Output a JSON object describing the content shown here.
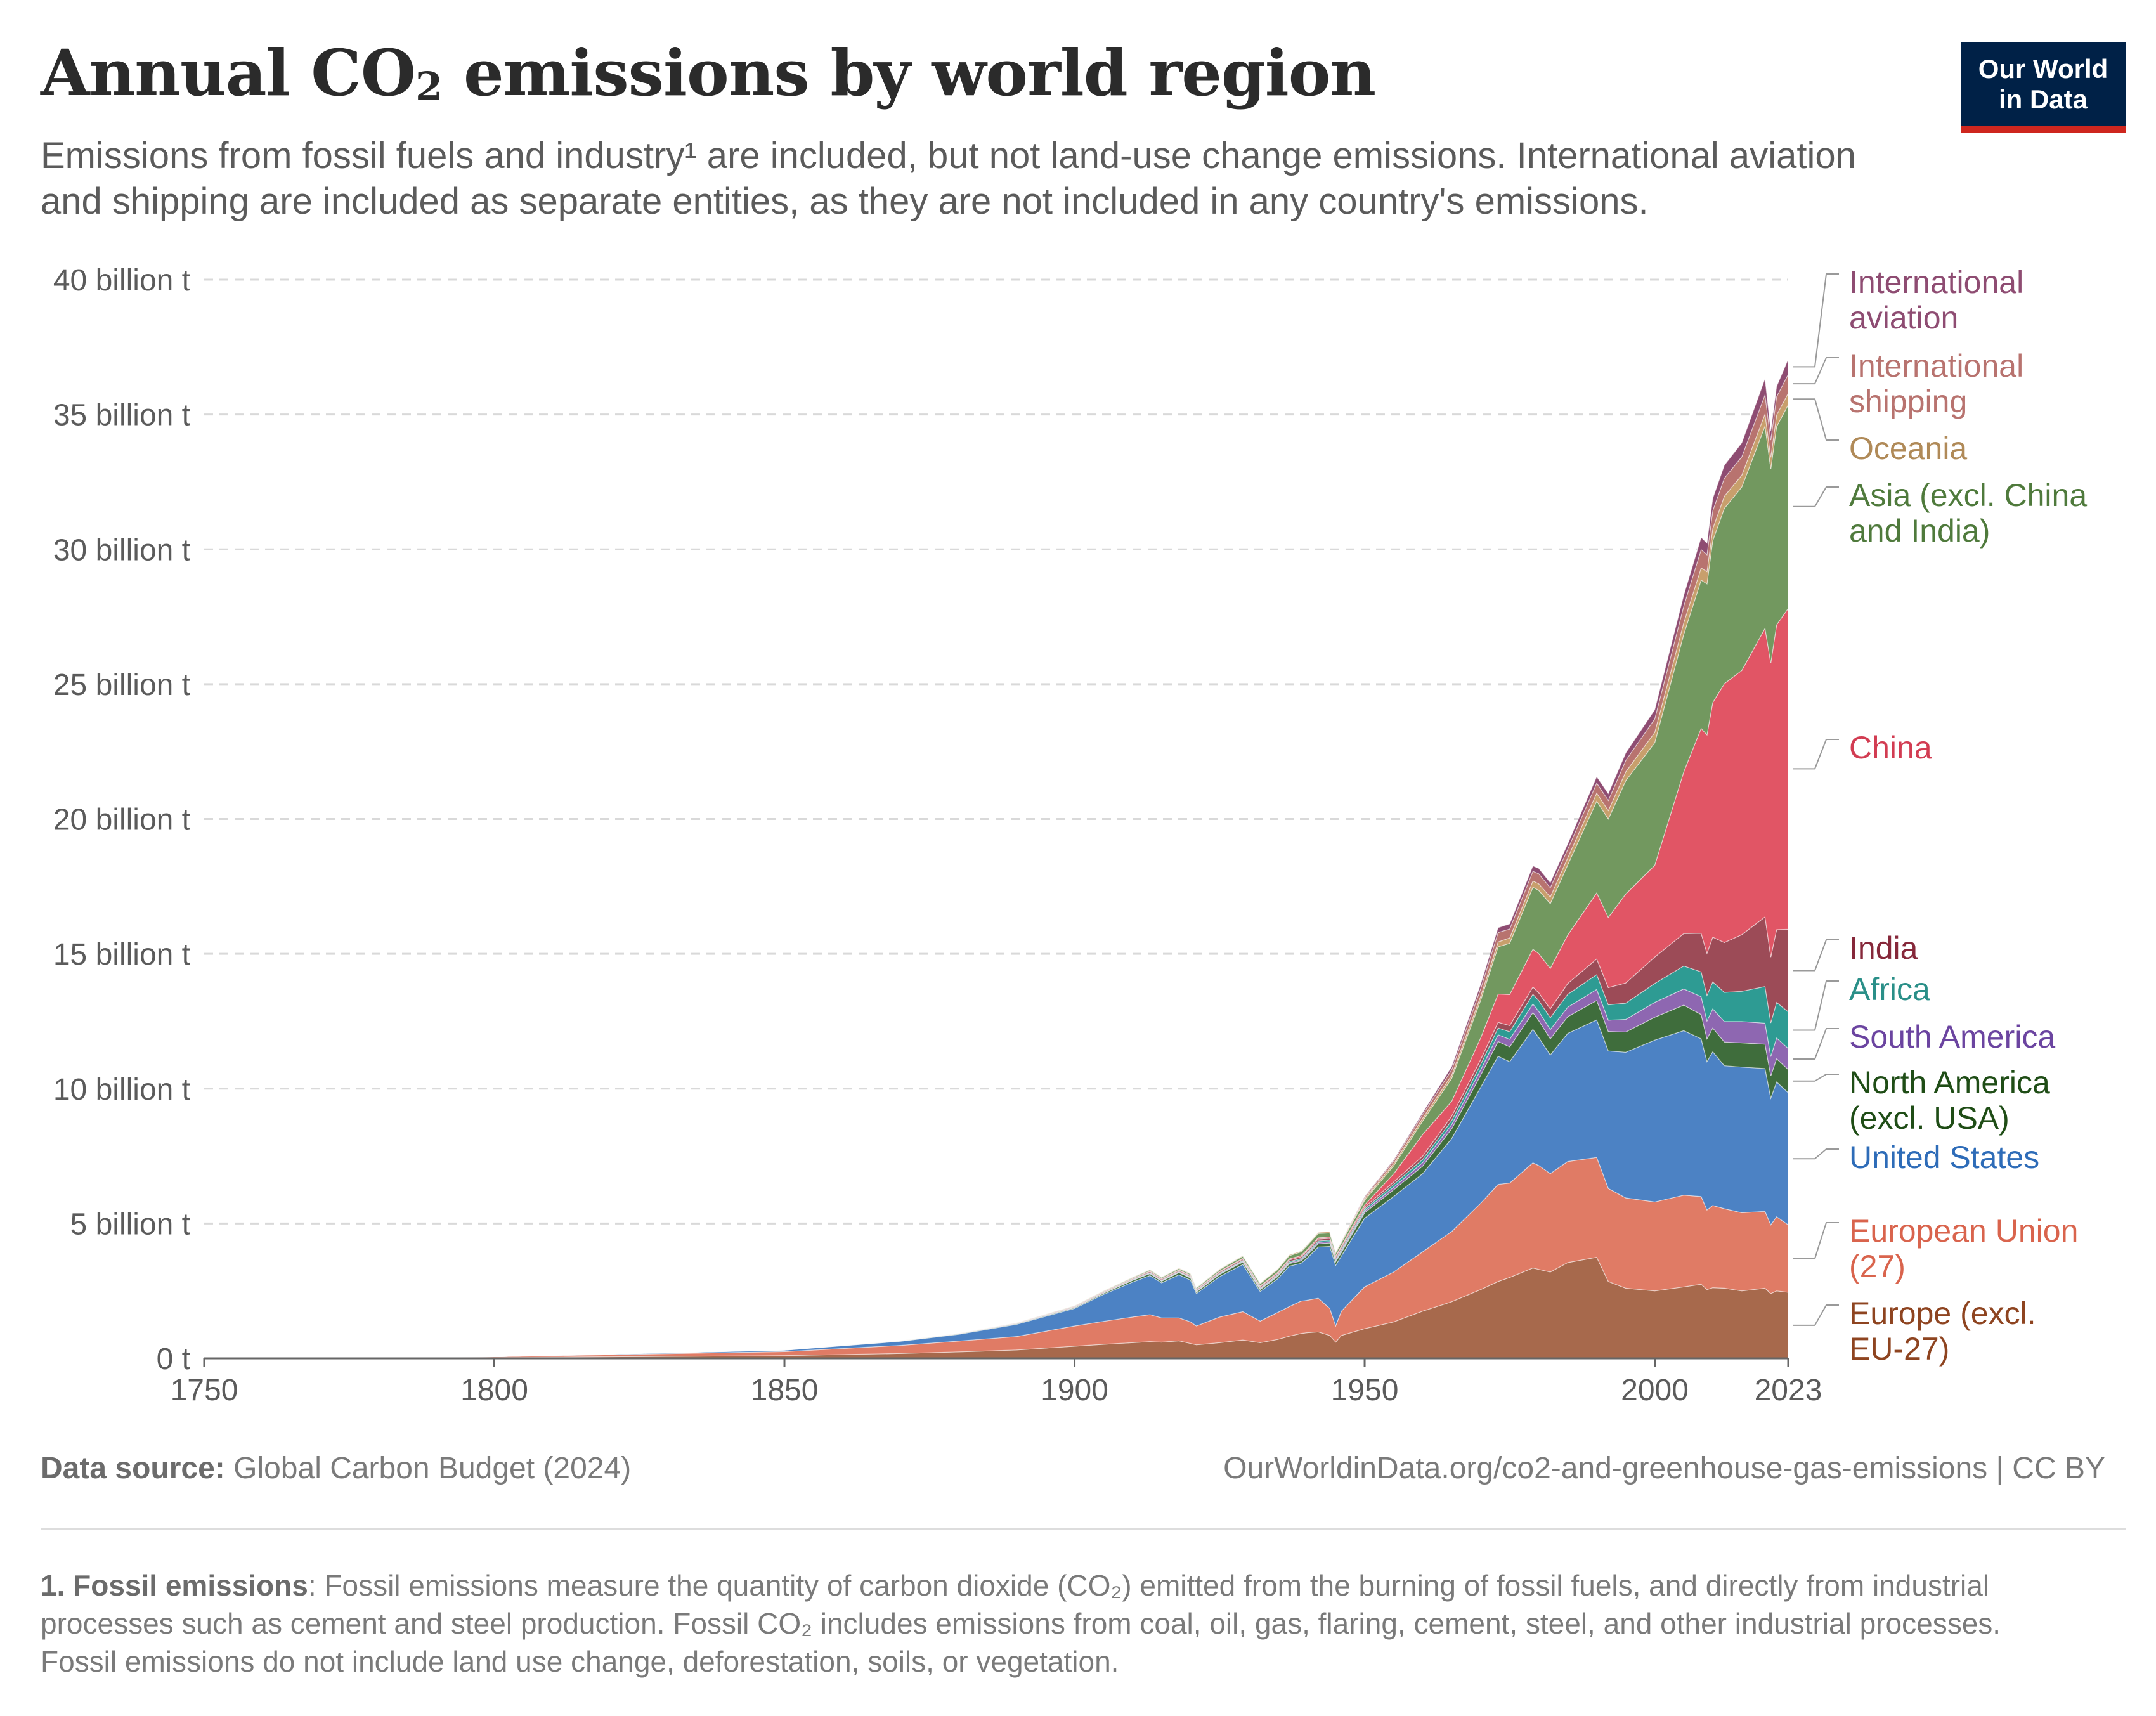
{
  "header": {
    "title_main": "Annual CO",
    "title_sub": "2",
    "title_rest": " emissions by world region",
    "subtitle": "Emissions from fossil fuels and industry¹ are included, but not land-use change emissions. International aviation and shipping are included as separate entities, as they are not included in any country's emissions."
  },
  "logo": {
    "line1": "Our World",
    "line2": "in Data"
  },
  "colors": {
    "logo_bg": "#002147",
    "logo_accent": "#ce261e"
  },
  "chart_data": {
    "type": "area",
    "stacked": true,
    "title": "Annual CO₂ emissions by world region",
    "x": [
      1750,
      1800,
      1850,
      1870,
      1880,
      1890,
      1900,
      1905,
      1910,
      1913,
      1915,
      1918,
      1920,
      1921,
      1925,
      1929,
      1932,
      1935,
      1937,
      1939,
      1940,
      1942,
      1944,
      1945,
      1946,
      1950,
      1955,
      1960,
      1965,
      1970,
      1973,
      1975,
      1979,
      1980,
      1982,
      1985,
      1990,
      1992,
      1995,
      2000,
      2005,
      2008,
      2009,
      2010,
      2012,
      2015,
      2019,
      2020,
      2021,
      2023
    ],
    "series": [
      {
        "name": "Europe (excl. EU-27)",
        "color": "#a7694c",
        "values": [
          0.003,
          0.03,
          0.1,
          0.18,
          0.24,
          0.31,
          0.45,
          0.52,
          0.58,
          0.62,
          0.6,
          0.65,
          0.55,
          0.5,
          0.58,
          0.68,
          0.58,
          0.7,
          0.82,
          0.92,
          0.95,
          0.98,
          0.85,
          0.6,
          0.85,
          1.1,
          1.35,
          1.75,
          2.1,
          2.55,
          2.85,
          3.0,
          3.35,
          3.3,
          3.2,
          3.55,
          3.75,
          2.85,
          2.6,
          2.5,
          2.65,
          2.75,
          2.55,
          2.62,
          2.6,
          2.5,
          2.6,
          2.4,
          2.5,
          2.45
        ]
      },
      {
        "name": "European Union (27)",
        "color": "#e07b65",
        "values": [
          0.004,
          0.03,
          0.15,
          0.3,
          0.4,
          0.5,
          0.75,
          0.85,
          0.95,
          1.0,
          0.9,
          0.85,
          0.8,
          0.7,
          0.95,
          1.05,
          0.8,
          1.0,
          1.1,
          1.2,
          1.2,
          1.25,
          1.0,
          0.6,
          0.9,
          1.55,
          1.85,
          2.2,
          2.6,
          3.2,
          3.6,
          3.5,
          3.9,
          3.85,
          3.65,
          3.75,
          3.7,
          3.45,
          3.35,
          3.3,
          3.4,
          3.25,
          2.95,
          3.05,
          2.95,
          2.9,
          2.85,
          2.55,
          2.75,
          2.5
        ]
      },
      {
        "name": "United States",
        "color": "#4c82c4",
        "values": [
          0.0,
          0.002,
          0.05,
          0.15,
          0.25,
          0.45,
          0.65,
          1.0,
          1.3,
          1.45,
          1.3,
          1.6,
          1.55,
          1.2,
          1.5,
          1.75,
          1.1,
          1.25,
          1.5,
          1.4,
          1.55,
          1.9,
          2.3,
          2.25,
          2.05,
          2.55,
          2.8,
          2.9,
          3.45,
          4.3,
          4.75,
          4.5,
          4.95,
          4.75,
          4.4,
          4.75,
          5.1,
          5.1,
          5.4,
          6.0,
          6.1,
          5.85,
          5.5,
          5.7,
          5.3,
          5.4,
          5.3,
          4.7,
          5.0,
          4.9
        ]
      },
      {
        "name": "North America (excl. USA)",
        "color": "#3f6d3c",
        "values": [
          0.0,
          0.0,
          0.005,
          0.01,
          0.015,
          0.02,
          0.03,
          0.04,
          0.06,
          0.07,
          0.06,
          0.08,
          0.08,
          0.06,
          0.08,
          0.09,
          0.07,
          0.08,
          0.09,
          0.09,
          0.1,
          0.12,
          0.13,
          0.13,
          0.13,
          0.2,
          0.25,
          0.28,
          0.36,
          0.45,
          0.55,
          0.55,
          0.62,
          0.63,
          0.6,
          0.62,
          0.72,
          0.72,
          0.75,
          0.85,
          0.95,
          0.9,
          0.85,
          0.88,
          0.88,
          0.9,
          0.9,
          0.82,
          0.86,
          0.86
        ]
      },
      {
        "name": "South America",
        "color": "#8e67b1",
        "values": [
          0.0,
          0.0,
          0.001,
          0.003,
          0.004,
          0.006,
          0.01,
          0.012,
          0.015,
          0.02,
          0.02,
          0.02,
          0.02,
          0.02,
          0.025,
          0.03,
          0.03,
          0.035,
          0.04,
          0.045,
          0.05,
          0.05,
          0.05,
          0.05,
          0.055,
          0.07,
          0.1,
          0.13,
          0.16,
          0.2,
          0.25,
          0.28,
          0.32,
          0.34,
          0.34,
          0.35,
          0.41,
          0.42,
          0.47,
          0.55,
          0.6,
          0.66,
          0.66,
          0.71,
          0.76,
          0.79,
          0.78,
          0.72,
          0.77,
          0.78
        ]
      },
      {
        "name": "Africa",
        "color": "#2e9b93",
        "values": [
          0.0,
          0.0,
          0.001,
          0.003,
          0.004,
          0.006,
          0.01,
          0.012,
          0.015,
          0.02,
          0.02,
          0.02,
          0.02,
          0.02,
          0.025,
          0.03,
          0.03,
          0.035,
          0.04,
          0.045,
          0.05,
          0.05,
          0.05,
          0.05,
          0.06,
          0.07,
          0.1,
          0.12,
          0.15,
          0.2,
          0.25,
          0.28,
          0.36,
          0.4,
          0.44,
          0.48,
          0.55,
          0.57,
          0.6,
          0.7,
          0.85,
          0.92,
          0.95,
          1.0,
          1.08,
          1.12,
          1.36,
          1.25,
          1.32,
          1.36
        ]
      },
      {
        "name": "India",
        "color": "#9c4b57",
        "values": [
          0.0,
          0.0,
          0.001,
          0.003,
          0.005,
          0.01,
          0.02,
          0.025,
          0.03,
          0.04,
          0.04,
          0.04,
          0.04,
          0.04,
          0.045,
          0.05,
          0.05,
          0.05,
          0.06,
          0.06,
          0.065,
          0.07,
          0.07,
          0.07,
          0.07,
          0.07,
          0.09,
          0.12,
          0.16,
          0.18,
          0.21,
          0.23,
          0.27,
          0.29,
          0.33,
          0.4,
          0.58,
          0.64,
          0.75,
          0.98,
          1.2,
          1.43,
          1.56,
          1.66,
          1.85,
          2.1,
          2.58,
          2.44,
          2.7,
          3.06
        ]
      },
      {
        "name": "China",
        "color": "#e15565",
        "values": [
          0.0,
          0.0,
          0.001,
          0.002,
          0.003,
          0.005,
          0.01,
          0.012,
          0.015,
          0.02,
          0.02,
          0.02,
          0.02,
          0.02,
          0.025,
          0.03,
          0.03,
          0.04,
          0.04,
          0.045,
          0.05,
          0.05,
          0.05,
          0.05,
          0.055,
          0.08,
          0.3,
          0.8,
          0.55,
          0.8,
          1.05,
          1.15,
          1.4,
          1.45,
          1.5,
          1.8,
          2.45,
          2.6,
          3.3,
          3.4,
          6.0,
          7.6,
          8.1,
          8.7,
          9.6,
          9.8,
          10.7,
          10.9,
          11.3,
          11.9
        ]
      },
      {
        "name": "Asia (excl. China and India)",
        "color": "#72985f",
        "values": [
          0.0,
          0.0,
          0.001,
          0.002,
          0.004,
          0.008,
          0.015,
          0.02,
          0.03,
          0.04,
          0.04,
          0.05,
          0.05,
          0.05,
          0.06,
          0.08,
          0.08,
          0.1,
          0.12,
          0.14,
          0.15,
          0.16,
          0.15,
          0.1,
          0.12,
          0.17,
          0.3,
          0.5,
          0.85,
          1.4,
          1.75,
          1.9,
          2.3,
          2.35,
          2.4,
          2.6,
          3.4,
          3.65,
          4.2,
          4.55,
          5.1,
          5.5,
          5.6,
          6.0,
          6.5,
          6.8,
          7.5,
          7.2,
          7.35,
          7.55
        ]
      },
      {
        "name": "Oceania",
        "color": "#c89f6c",
        "values": [
          0.0,
          0.0,
          0.002,
          0.005,
          0.007,
          0.01,
          0.015,
          0.018,
          0.02,
          0.022,
          0.022,
          0.025,
          0.025,
          0.022,
          0.028,
          0.03,
          0.028,
          0.032,
          0.036,
          0.038,
          0.04,
          0.045,
          0.048,
          0.05,
          0.05,
          0.06,
          0.08,
          0.1,
          0.12,
          0.15,
          0.18,
          0.2,
          0.23,
          0.24,
          0.25,
          0.26,
          0.3,
          0.31,
          0.33,
          0.38,
          0.43,
          0.45,
          0.45,
          0.45,
          0.45,
          0.44,
          0.45,
          0.43,
          0.43,
          0.43
        ]
      },
      {
        "name": "International shipping",
        "color": "#b8736f",
        "values": [
          0.0,
          0.0,
          0.0,
          0.0,
          0.0,
          0.0,
          0.0,
          0.0,
          0.0,
          0.0,
          0.0,
          0.0,
          0.0,
          0.0,
          0.0,
          0.0,
          0.0,
          0.0,
          0.0,
          0.0,
          0.0,
          0.0,
          0.0,
          0.0,
          0.0,
          0.06,
          0.1,
          0.14,
          0.2,
          0.28,
          0.35,
          0.33,
          0.36,
          0.37,
          0.34,
          0.32,
          0.37,
          0.38,
          0.42,
          0.5,
          0.62,
          0.68,
          0.63,
          0.66,
          0.67,
          0.68,
          0.71,
          0.64,
          0.68,
          0.7
        ]
      },
      {
        "name": "International aviation",
        "color": "#8e4c72",
        "values": [
          0.0,
          0.0,
          0.0,
          0.0,
          0.0,
          0.0,
          0.0,
          0.0,
          0.0,
          0.0,
          0.0,
          0.0,
          0.0,
          0.0,
          0.0,
          0.0,
          0.0,
          0.0,
          0.0,
          0.0,
          0.0,
          0.0,
          0.0,
          0.0,
          0.0,
          0.02,
          0.04,
          0.07,
          0.12,
          0.16,
          0.18,
          0.19,
          0.2,
          0.2,
          0.19,
          0.2,
          0.24,
          0.25,
          0.28,
          0.34,
          0.4,
          0.45,
          0.43,
          0.46,
          0.48,
          0.52,
          0.6,
          0.33,
          0.38,
          0.56
        ]
      }
    ],
    "xlim": [
      1750,
      2023
    ],
    "ylim": [
      0,
      40
    ],
    "y_ticks": [
      0,
      5,
      10,
      15,
      20,
      25,
      30,
      35,
      40
    ],
    "y_tick_labels": [
      "0 t",
      "5 billion t",
      "10 billion t",
      "15 billion t",
      "20 billion t",
      "25 billion t",
      "30 billion t",
      "35 billion t",
      "40 billion t"
    ],
    "x_ticks": [
      1750,
      1800,
      1850,
      1900,
      1950,
      2000,
      2023
    ],
    "x_tick_labels": [
      "1750",
      "1800",
      "1850",
      "1900",
      "1950",
      "2000",
      "2023"
    ],
    "grid": true,
    "legend_placement": "right, inline labels at end of series",
    "legend_labels": [
      {
        "series": "International aviation",
        "lines": [
          "International",
          "aviation"
        ],
        "color": "#8e4c72"
      },
      {
        "series": "International shipping",
        "lines": [
          "International",
          "shipping"
        ],
        "color": "#b8736f"
      },
      {
        "series": "Oceania",
        "lines": [
          "Oceania"
        ],
        "color": "#b08a58"
      },
      {
        "series": "Asia (excl. China and India)",
        "lines": [
          "Asia (excl. China",
          "and India)"
        ],
        "color": "#4f7a3c"
      },
      {
        "series": "China",
        "lines": [
          "China"
        ],
        "color": "#d23c52"
      },
      {
        "series": "India",
        "lines": [
          "India"
        ],
        "color": "#86283a"
      },
      {
        "series": "Africa",
        "lines": [
          "Africa"
        ],
        "color": "#2a8f88"
      },
      {
        "series": "South America",
        "lines": [
          "South America"
        ],
        "color": "#6b44a0"
      },
      {
        "series": "North America (excl. USA)",
        "lines": [
          "North America",
          "(excl. USA)"
        ],
        "color": "#1f4d16"
      },
      {
        "series": "United States",
        "lines": [
          "United States"
        ],
        "color": "#2e6cb8"
      },
      {
        "series": "European Union (27)",
        "lines": [
          "European Union",
          "(27)"
        ],
        "color": "#d9644d"
      },
      {
        "series": "Europe (excl. EU-27)",
        "lines": [
          "Europe (excl.",
          "EU-27)"
        ],
        "color": "#8e4420"
      }
    ]
  },
  "footer": {
    "source_label": "Data source:",
    "source_text": " Global Carbon Budget (2024)",
    "url_text": "OurWorldinData.org/co2-and-greenhouse-gas-emissions | CC BY"
  },
  "note": {
    "label": "1. Fossil emissions",
    "text": ": Fossil emissions measure the quantity of carbon dioxide (CO₂) emitted from the burning of fossil fuels, and directly from industrial processes such as cement and steel production. Fossil CO₂ includes emissions from coal, oil, gas, flaring, cement, steel, and other industrial processes. Fossil emissions do not include land use change, deforestation, soils, or vegetation."
  }
}
